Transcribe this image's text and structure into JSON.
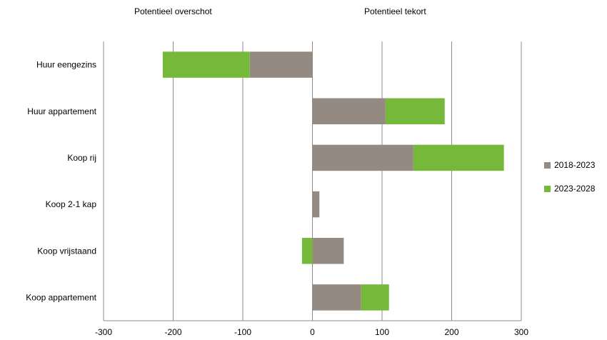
{
  "headers": {
    "left": "Potentieel overschot",
    "right": "Potentieel tekort"
  },
  "colors": {
    "series1": "#948a82",
    "series2": "#76b83a",
    "grid": "#8c8c8c"
  },
  "chart_data": {
    "type": "bar",
    "orientation": "horizontal",
    "stacked": true,
    "categories": [
      "Huur eengezins",
      "Huur appartement",
      "Koop rij",
      "Koop 2-1 kap",
      "Koop vrijstaand",
      "Koop appartement"
    ],
    "series": [
      {
        "name": "2018-2023",
        "values": [
          -90,
          105,
          145,
          10,
          45,
          70
        ]
      },
      {
        "name": "2023-2028",
        "values": [
          -125,
          85,
          130,
          0,
          -15,
          40
        ]
      }
    ],
    "xlim": [
      -300,
      300
    ],
    "xticks": [
      "-300",
      "-200",
      "-100",
      "0",
      "100",
      "200",
      "300"
    ],
    "grid": "vertical",
    "legend": "right"
  }
}
